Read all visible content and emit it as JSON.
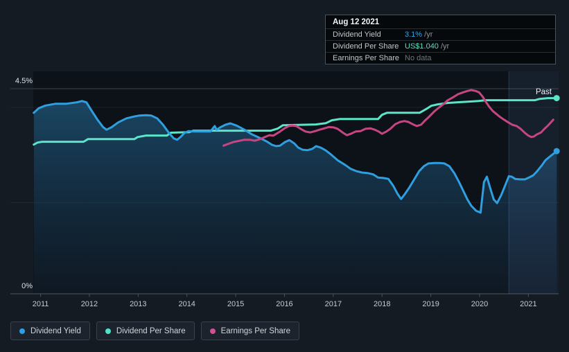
{
  "tooltip": {
    "date": "Aug 12 2021",
    "rows": [
      {
        "label": "Dividend Yield",
        "value": "3.1%",
        "suffix": " /yr",
        "color": "#37a3e8"
      },
      {
        "label": "Dividend Per Share",
        "value": "US$1.040",
        "suffix": " /yr",
        "color": "#4fe3c5"
      },
      {
        "label": "Earnings Per Share",
        "value": "No data",
        "suffix": "",
        "color": "#6e757c"
      }
    ]
  },
  "legend": [
    {
      "label": "Dividend Yield",
      "color": "#2aa0ea"
    },
    {
      "label": "Dividend Per Share",
      "color": "#4fe3c5"
    },
    {
      "label": "Earnings Per Share",
      "color": "#d34f90"
    }
  ],
  "chart_data": {
    "type": "line",
    "past_label": "Past",
    "past_band_start": 2020.6,
    "x_axis": {
      "range": [
        2010.85,
        2021.62
      ],
      "ticks": [
        2011,
        2012,
        2013,
        2014,
        2015,
        2016,
        2017,
        2018,
        2019,
        2020,
        2021
      ]
    },
    "y_axes": {
      "pct": {
        "min": 0,
        "max": 4.5,
        "unit": "%",
        "gridlines": [
          {
            "value": 4.5,
            "label": "4.5%",
            "style": "strong"
          },
          {
            "value": 4.09,
            "style": "faint"
          },
          {
            "value": 2.0,
            "style": "faint"
          },
          {
            "value": 0,
            "label": "0%",
            "style": "axis"
          }
        ]
      },
      "usd": {
        "min": 0,
        "max": 1.09,
        "unit": "US$",
        "note": "hidden scale for Dividend Per Share"
      }
    },
    "series": [
      {
        "name": "Dividend Yield",
        "axis": "pct",
        "unit": "%",
        "color": "#2f9fe0",
        "area": true,
        "end_dot": true,
        "points": [
          [
            2010.86,
            3.97
          ],
          [
            2010.96,
            4.07
          ],
          [
            2011.1,
            4.13
          ],
          [
            2011.31,
            4.17
          ],
          [
            2011.53,
            4.17
          ],
          [
            2011.74,
            4.2
          ],
          [
            2011.85,
            4.23
          ],
          [
            2011.94,
            4.2
          ],
          [
            2012.05,
            4.01
          ],
          [
            2012.16,
            3.83
          ],
          [
            2012.28,
            3.66
          ],
          [
            2012.35,
            3.6
          ],
          [
            2012.45,
            3.65
          ],
          [
            2012.59,
            3.76
          ],
          [
            2012.76,
            3.85
          ],
          [
            2012.92,
            3.89
          ],
          [
            2013.02,
            3.91
          ],
          [
            2013.16,
            3.92
          ],
          [
            2013.27,
            3.91
          ],
          [
            2013.39,
            3.85
          ],
          [
            2013.51,
            3.71
          ],
          [
            2013.63,
            3.53
          ],
          [
            2013.73,
            3.41
          ],
          [
            2013.8,
            3.38
          ],
          [
            2013.87,
            3.44
          ],
          [
            2013.95,
            3.53
          ],
          [
            2014.03,
            3.57
          ],
          [
            2014.15,
            3.56
          ],
          [
            2014.32,
            3.56
          ],
          [
            2014.48,
            3.56
          ],
          [
            2014.57,
            3.68
          ],
          [
            2014.61,
            3.6
          ],
          [
            2014.68,
            3.65
          ],
          [
            2014.79,
            3.71
          ],
          [
            2014.89,
            3.74
          ],
          [
            2015.02,
            3.69
          ],
          [
            2015.18,
            3.6
          ],
          [
            2015.33,
            3.5
          ],
          [
            2015.49,
            3.42
          ],
          [
            2015.64,
            3.34
          ],
          [
            2015.74,
            3.27
          ],
          [
            2015.83,
            3.24
          ],
          [
            2015.91,
            3.25
          ],
          [
            2016.01,
            3.33
          ],
          [
            2016.1,
            3.37
          ],
          [
            2016.2,
            3.3
          ],
          [
            2016.28,
            3.21
          ],
          [
            2016.37,
            3.16
          ],
          [
            2016.47,
            3.15
          ],
          [
            2016.57,
            3.18
          ],
          [
            2016.65,
            3.24
          ],
          [
            2016.74,
            3.21
          ],
          [
            2016.84,
            3.15
          ],
          [
            2016.95,
            3.06
          ],
          [
            2017.09,
            2.93
          ],
          [
            2017.24,
            2.83
          ],
          [
            2017.36,
            2.74
          ],
          [
            2017.48,
            2.69
          ],
          [
            2017.59,
            2.66
          ],
          [
            2017.7,
            2.65
          ],
          [
            2017.82,
            2.62
          ],
          [
            2017.92,
            2.55
          ],
          [
            2018.03,
            2.54
          ],
          [
            2018.13,
            2.52
          ],
          [
            2018.23,
            2.37
          ],
          [
            2018.32,
            2.19
          ],
          [
            2018.39,
            2.08
          ],
          [
            2018.47,
            2.19
          ],
          [
            2018.56,
            2.33
          ],
          [
            2018.66,
            2.51
          ],
          [
            2018.76,
            2.69
          ],
          [
            2018.86,
            2.8
          ],
          [
            2018.95,
            2.86
          ],
          [
            2019.07,
            2.87
          ],
          [
            2019.18,
            2.87
          ],
          [
            2019.28,
            2.86
          ],
          [
            2019.38,
            2.8
          ],
          [
            2019.48,
            2.65
          ],
          [
            2019.58,
            2.45
          ],
          [
            2019.66,
            2.27
          ],
          [
            2019.75,
            2.07
          ],
          [
            2019.83,
            1.93
          ],
          [
            2019.93,
            1.82
          ],
          [
            2020.02,
            1.78
          ],
          [
            2020.09,
            2.45
          ],
          [
            2020.15,
            2.57
          ],
          [
            2020.22,
            2.31
          ],
          [
            2020.29,
            2.07
          ],
          [
            2020.36,
            1.99
          ],
          [
            2020.44,
            2.16
          ],
          [
            2020.51,
            2.34
          ],
          [
            2020.6,
            2.58
          ],
          [
            2020.66,
            2.57
          ],
          [
            2020.73,
            2.52
          ],
          [
            2020.83,
            2.51
          ],
          [
            2020.93,
            2.51
          ],
          [
            2021.01,
            2.55
          ],
          [
            2021.1,
            2.6
          ],
          [
            2021.18,
            2.69
          ],
          [
            2021.27,
            2.81
          ],
          [
            2021.35,
            2.93
          ],
          [
            2021.44,
            3.01
          ],
          [
            2021.51,
            3.07
          ],
          [
            2021.58,
            3.13
          ]
        ]
      },
      {
        "name": "Dividend Per Share",
        "axis": "usd",
        "unit": "US$",
        "color": "#5ce5c8",
        "area": false,
        "end_dot": true,
        "points": [
          [
            2010.86,
            0.793
          ],
          [
            2010.94,
            0.804
          ],
          [
            2011.03,
            0.808
          ],
          [
            2011.88,
            0.808
          ],
          [
            2011.97,
            0.822
          ],
          [
            2012.92,
            0.822
          ],
          [
            2012.99,
            0.833
          ],
          [
            2013.16,
            0.841
          ],
          [
            2013.59,
            0.841
          ],
          [
            2013.67,
            0.856
          ],
          [
            2014.05,
            0.859
          ],
          [
            2014.13,
            0.867
          ],
          [
            2015.72,
            0.867
          ],
          [
            2015.86,
            0.878
          ],
          [
            2015.97,
            0.896
          ],
          [
            2016.64,
            0.9
          ],
          [
            2016.85,
            0.907
          ],
          [
            2016.97,
            0.922
          ],
          [
            2017.14,
            0.929
          ],
          [
            2017.92,
            0.929
          ],
          [
            2018.0,
            0.951
          ],
          [
            2018.1,
            0.962
          ],
          [
            2018.77,
            0.962
          ],
          [
            2018.9,
            0.981
          ],
          [
            2019.01,
            0.999
          ],
          [
            2019.15,
            1.007
          ],
          [
            2019.34,
            1.014
          ],
          [
            2019.55,
            1.018
          ],
          [
            2019.76,
            1.021
          ],
          [
            2019.98,
            1.025
          ],
          [
            2020.12,
            1.029
          ],
          [
            2021.14,
            1.029
          ],
          [
            2021.23,
            1.036
          ],
          [
            2021.4,
            1.04
          ],
          [
            2021.58,
            1.04
          ]
        ]
      },
      {
        "name": "Earnings Per Share",
        "axis": "pct",
        "color": "#c64682",
        "area": false,
        "end_dot": false,
        "scale_note": "plotted on unlabeled scale; values are positions on the % axis",
        "points": [
          [
            2014.75,
            3.25
          ],
          [
            2014.95,
            3.33
          ],
          [
            2015.18,
            3.38
          ],
          [
            2015.29,
            3.38
          ],
          [
            2015.39,
            3.36
          ],
          [
            2015.49,
            3.39
          ],
          [
            2015.69,
            3.48
          ],
          [
            2015.77,
            3.47
          ],
          [
            2015.91,
            3.56
          ],
          [
            2016.0,
            3.63
          ],
          [
            2016.09,
            3.68
          ],
          [
            2016.16,
            3.69
          ],
          [
            2016.24,
            3.68
          ],
          [
            2016.33,
            3.62
          ],
          [
            2016.43,
            3.56
          ],
          [
            2016.53,
            3.54
          ],
          [
            2016.63,
            3.57
          ],
          [
            2016.72,
            3.6
          ],
          [
            2016.82,
            3.63
          ],
          [
            2016.91,
            3.66
          ],
          [
            2017.01,
            3.65
          ],
          [
            2017.09,
            3.62
          ],
          [
            2017.19,
            3.54
          ],
          [
            2017.28,
            3.48
          ],
          [
            2017.36,
            3.51
          ],
          [
            2017.46,
            3.56
          ],
          [
            2017.56,
            3.57
          ],
          [
            2017.66,
            3.62
          ],
          [
            2017.76,
            3.63
          ],
          [
            2017.85,
            3.6
          ],
          [
            2017.93,
            3.56
          ],
          [
            2018.0,
            3.51
          ],
          [
            2018.09,
            3.56
          ],
          [
            2018.17,
            3.62
          ],
          [
            2018.27,
            3.72
          ],
          [
            2018.37,
            3.77
          ],
          [
            2018.46,
            3.79
          ],
          [
            2018.54,
            3.77
          ],
          [
            2018.63,
            3.72
          ],
          [
            2018.71,
            3.68
          ],
          [
            2018.8,
            3.71
          ],
          [
            2018.88,
            3.8
          ],
          [
            2018.97,
            3.89
          ],
          [
            2019.07,
            4.0
          ],
          [
            2019.17,
            4.09
          ],
          [
            2019.27,
            4.17
          ],
          [
            2019.34,
            4.24
          ],
          [
            2019.47,
            4.32
          ],
          [
            2019.56,
            4.38
          ],
          [
            2019.66,
            4.42
          ],
          [
            2019.75,
            4.45
          ],
          [
            2019.83,
            4.47
          ],
          [
            2019.92,
            4.45
          ],
          [
            2019.99,
            4.42
          ],
          [
            2020.06,
            4.33
          ],
          [
            2020.13,
            4.21
          ],
          [
            2020.2,
            4.1
          ],
          [
            2020.27,
            4.01
          ],
          [
            2020.35,
            3.94
          ],
          [
            2020.42,
            3.88
          ],
          [
            2020.5,
            3.82
          ],
          [
            2020.59,
            3.76
          ],
          [
            2020.67,
            3.71
          ],
          [
            2020.76,
            3.68
          ],
          [
            2020.84,
            3.62
          ],
          [
            2020.93,
            3.53
          ],
          [
            2021.0,
            3.47
          ],
          [
            2021.06,
            3.44
          ],
          [
            2021.11,
            3.45
          ],
          [
            2021.18,
            3.5
          ],
          [
            2021.26,
            3.54
          ],
          [
            2021.33,
            3.62
          ],
          [
            2021.4,
            3.69
          ],
          [
            2021.47,
            3.77
          ],
          [
            2021.51,
            3.82
          ]
        ]
      }
    ]
  }
}
